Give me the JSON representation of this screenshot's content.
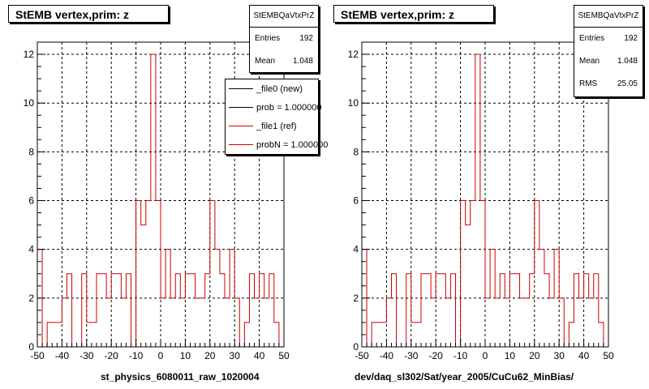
{
  "chart_data": [
    {
      "type": "bar",
      "title": "StEMB  vertex,prim: z",
      "xlabel": "st_physics_6080011_raw_1020004",
      "ylabel": "",
      "xlim": [
        -50,
        50
      ],
      "ylim": [
        0,
        12.5
      ],
      "x_ticks": [
        -50,
        -40,
        -30,
        -20,
        -10,
        0,
        10,
        20,
        30,
        40,
        50
      ],
      "y_ticks": [
        0,
        2,
        4,
        6,
        8,
        10,
        12
      ],
      "grid": true,
      "bin_width": 2,
      "series": [
        {
          "values": [
            4,
            0,
            1,
            1,
            1,
            2,
            3,
            0,
            0,
            3,
            1,
            1,
            3,
            3,
            2,
            3,
            3,
            2,
            3,
            0,
            6,
            5,
            6,
            12,
            6,
            2,
            4,
            2,
            3,
            2,
            3,
            3,
            2,
            2,
            3,
            6,
            4,
            3,
            2,
            4,
            2,
            0,
            1,
            3,
            2,
            3,
            2,
            3,
            1,
            0
          ]
        }
      ],
      "stats": {
        "name": "StEMBQaVtxPrZ",
        "rows": [
          {
            "label": "Entries",
            "value": "192"
          },
          {
            "label": "Mean",
            "value": "1.048"
          }
        ]
      },
      "legend": {
        "placement": "top-right",
        "entries": [
          {
            "label": "_file0 (new)",
            "color": "#000000"
          },
          {
            "label": "prob = 1.000000",
            "color": "#000000"
          },
          {
            "label": "_file1 (ref)",
            "color": "#cc0000"
          },
          {
            "label": "probN = 1.000000",
            "color": "#cc0000"
          }
        ]
      }
    },
    {
      "type": "bar",
      "title": "StEMB  vertex,prim: z",
      "xlabel": "dev/daq_sl302/Sat/year_2005/CuCu62_MinBias/",
      "ylabel": "",
      "xlim": [
        -50,
        50
      ],
      "ylim": [
        0,
        12.5
      ],
      "x_ticks": [
        -50,
        -40,
        -30,
        -20,
        -10,
        0,
        10,
        20,
        30,
        40,
        50
      ],
      "y_ticks": [
        0,
        2,
        4,
        6,
        8,
        10,
        12
      ],
      "grid": true,
      "bin_width": 2,
      "series": [
        {
          "values": [
            4,
            0,
            1,
            1,
            1,
            2,
            3,
            0,
            0,
            3,
            1,
            1,
            3,
            3,
            2,
            3,
            3,
            2,
            3,
            0,
            6,
            5,
            6,
            12,
            6,
            2,
            4,
            2,
            3,
            2,
            3,
            3,
            2,
            2,
            3,
            6,
            4,
            3,
            2,
            4,
            2,
            0,
            1,
            3,
            2,
            3,
            2,
            3,
            1,
            0
          ]
        }
      ],
      "stats": {
        "name": "StEMBQaVtxPrZ",
        "rows": [
          {
            "label": "Entries",
            "value": "192"
          },
          {
            "label": "Mean",
            "value": "1.048"
          },
          {
            "label": "RMS",
            "value": "25.05"
          }
        ]
      }
    }
  ],
  "colors": {
    "histogram": "#cc0000",
    "axis": "#000000",
    "grid": "#000000"
  }
}
